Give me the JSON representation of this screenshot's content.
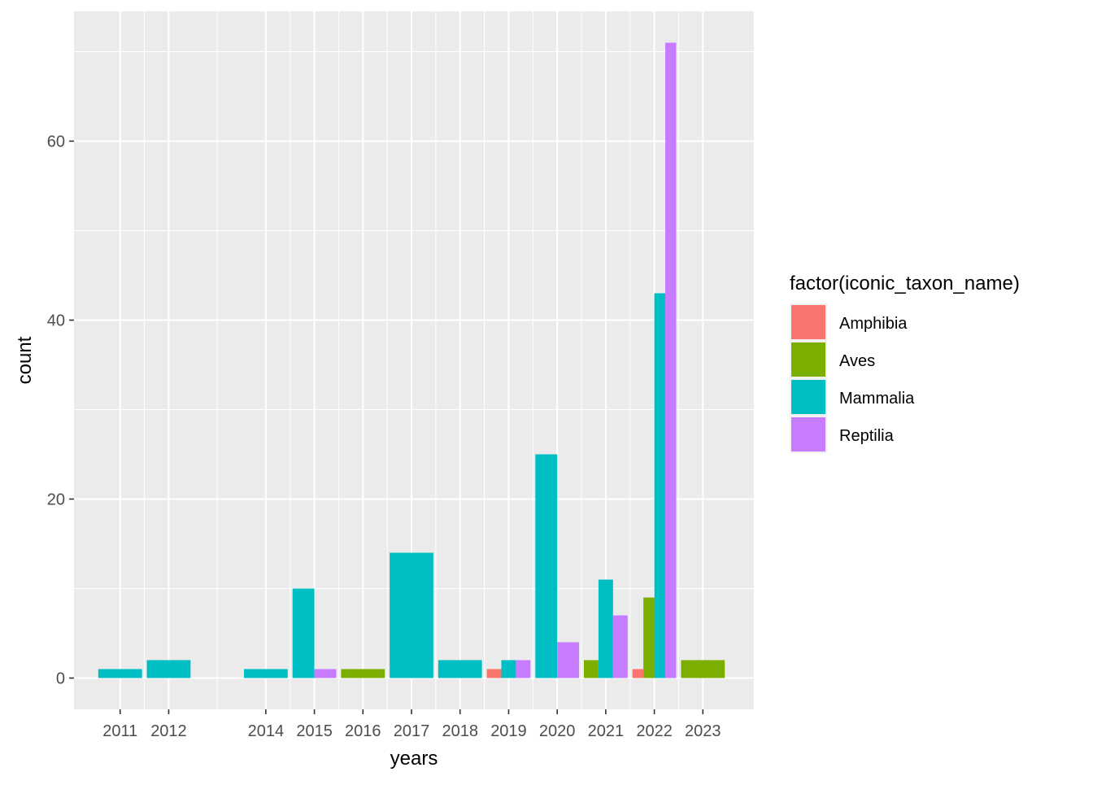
{
  "chart_data": {
    "type": "bar",
    "position": "dodge",
    "xlabel": "years",
    "ylabel": "count",
    "xlim": [
      2010.05,
      2024.05
    ],
    "ylim": [
      -3.5,
      74.5
    ],
    "x_ticks": [
      2011,
      2012,
      2014,
      2015,
      2016,
      2017,
      2018,
      2019,
      2020,
      2021,
      2022,
      2023
    ],
    "y_ticks": [
      0,
      20,
      40,
      60
    ],
    "grid": true,
    "panel_background": "#ebebeb",
    "legend": {
      "title": "factor(iconic_taxon_name)",
      "placement": "right",
      "entries": [
        {
          "name": "Amphibia",
          "color": "#F8766D"
        },
        {
          "name": "Aves",
          "color": "#7CAE00"
        },
        {
          "name": "Mammalia",
          "color": "#00BFC4"
        },
        {
          "name": "Reptilia",
          "color": "#C77CFF"
        }
      ]
    },
    "bars": [
      {
        "year": 2011,
        "taxon": "Mammalia",
        "value": 1,
        "n": 1,
        "slot": 0
      },
      {
        "year": 2012,
        "taxon": "Mammalia",
        "value": 2,
        "n": 1,
        "slot": 0
      },
      {
        "year": 2014,
        "taxon": "Mammalia",
        "value": 1,
        "n": 1,
        "slot": 0
      },
      {
        "year": 2015,
        "taxon": "Mammalia",
        "value": 10,
        "n": 2,
        "slot": 0
      },
      {
        "year": 2015,
        "taxon": "Reptilia",
        "value": 1,
        "n": 2,
        "slot": 1
      },
      {
        "year": 2016,
        "taxon": "Aves",
        "value": 1,
        "n": 1,
        "slot": 0
      },
      {
        "year": 2017,
        "taxon": "Mammalia",
        "value": 14,
        "n": 1,
        "slot": 0
      },
      {
        "year": 2018,
        "taxon": "Mammalia",
        "value": 2,
        "n": 1,
        "slot": 0
      },
      {
        "year": 2019,
        "taxon": "Amphibia",
        "value": 1,
        "n": 3,
        "slot": 0
      },
      {
        "year": 2019,
        "taxon": "Mammalia",
        "value": 2,
        "n": 3,
        "slot": 1
      },
      {
        "year": 2019,
        "taxon": "Reptilia",
        "value": 2,
        "n": 3,
        "slot": 2
      },
      {
        "year": 2020,
        "taxon": "Mammalia",
        "value": 25,
        "n": 2,
        "slot": 0
      },
      {
        "year": 2020,
        "taxon": "Reptilia",
        "value": 4,
        "n": 2,
        "slot": 1
      },
      {
        "year": 2021,
        "taxon": "Aves",
        "value": 2,
        "n": 3,
        "slot": 0
      },
      {
        "year": 2021,
        "taxon": "Mammalia",
        "value": 11,
        "n": 3,
        "slot": 1
      },
      {
        "year": 2021,
        "taxon": "Reptilia",
        "value": 7,
        "n": 3,
        "slot": 2
      },
      {
        "year": 2022,
        "taxon": "Amphibia",
        "value": 1,
        "n": 4,
        "slot": 0
      },
      {
        "year": 2022,
        "taxon": "Aves",
        "value": 9,
        "n": 4,
        "slot": 1
      },
      {
        "year": 2022,
        "taxon": "Mammalia",
        "value": 43,
        "n": 4,
        "slot": 2
      },
      {
        "year": 2022,
        "taxon": "Reptilia",
        "value": 71,
        "n": 4,
        "slot": 3
      },
      {
        "year": 2023,
        "taxon": "Aves",
        "value": 2,
        "n": 1,
        "slot": 0
      }
    ]
  }
}
